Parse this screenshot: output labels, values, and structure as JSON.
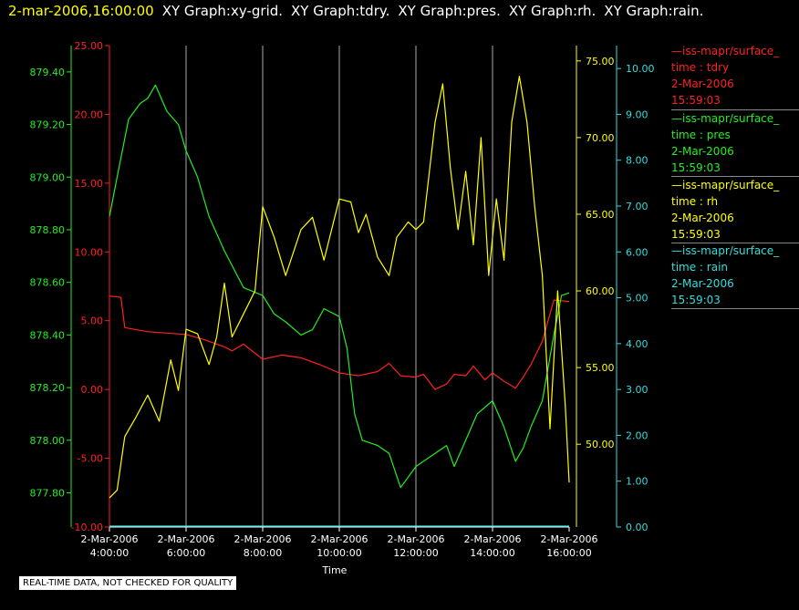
{
  "header": {
    "time": "2-mar-2006,16:00:00",
    "items": [
      "XY Graph:xy-grid.",
      "XY Graph:tdry.",
      "XY Graph:pres.",
      "XY Graph:rh.",
      "XY Graph:rain."
    ]
  },
  "footer_note": "REAL-TIME DATA, NOT CHECKED FOR QUALITY",
  "colors": {
    "tdry": "#ff2020",
    "pres": "#22ee22",
    "rh": "#ffff00",
    "rain": "#33dddd",
    "grid": "#aaaaaa"
  },
  "legend": [
    {
      "line1": "—iss-mapr/surface_",
      "line2": "time : tdry",
      "line3": "2-Mar-2006",
      "line4": "15:59:03",
      "color": "#ff2020"
    },
    {
      "line1": "—iss-mapr/surface_",
      "line2": "time : pres",
      "line3": "2-Mar-2006",
      "line4": "15:59:03",
      "color": "#22ee22"
    },
    {
      "line1": "—iss-mapr/surface_",
      "line2": "time : rh",
      "line3": "2-Mar-2006",
      "line4": "15:59:03",
      "color": "#ffff00"
    },
    {
      "line1": "—iss-mapr/surface_",
      "line2": "time : rain",
      "line3": "2-Mar-2006",
      "line4": "15:59:03",
      "color": "#33dddd"
    }
  ],
  "chart_data": {
    "type": "line",
    "xlabel": "Time",
    "x_ticks": [
      {
        "date": "2-Mar-2006",
        "time": "4:00:00",
        "hour": 4
      },
      {
        "date": "2-Mar-2006",
        "time": "6:00:00",
        "hour": 6
      },
      {
        "date": "2-Mar-2006",
        "time": "8:00:00",
        "hour": 8
      },
      {
        "date": "2-Mar-2006",
        "time": "10:00:00",
        "hour": 10
      },
      {
        "date": "2-Mar-2006",
        "time": "12:00:00",
        "hour": 12
      },
      {
        "date": "2-Mar-2006",
        "time": "14:00:00",
        "hour": 14
      },
      {
        "date": "2-Mar-2006",
        "time": "16:00:00",
        "hour": 16
      }
    ],
    "xlim": [
      4,
      16
    ],
    "axes": {
      "tdry": {
        "ylim": [
          -10,
          25
        ],
        "ticks": [
          "-10.00",
          "-5.00",
          "0.00",
          "5.00",
          "10.00",
          "15.00",
          "20.00",
          "25.00"
        ]
      },
      "pres": {
        "ylim": [
          877.67,
          879.5
        ],
        "ticks": [
          "877.80",
          "878.00",
          "878.20",
          "878.40",
          "878.60",
          "878.80",
          "879.00",
          "879.20",
          "879.40"
        ]
      },
      "rh": {
        "ylim": [
          44.6,
          76.0
        ],
        "ticks": [
          "50.00",
          "55.00",
          "60.00",
          "65.00",
          "70.00",
          "75.00"
        ]
      },
      "rain": {
        "ylim": [
          0,
          10.5
        ],
        "ticks": [
          "0.00",
          "1.00",
          "2.00",
          "3.00",
          "4.00",
          "5.00",
          "6.00",
          "7.00",
          "8.00",
          "9.00",
          "10.00"
        ]
      }
    },
    "series": [
      {
        "name": "tdry",
        "points": [
          [
            4.0,
            6.8
          ],
          [
            4.3,
            6.7
          ],
          [
            4.4,
            4.5
          ],
          [
            5.0,
            4.2
          ],
          [
            5.5,
            4.1
          ],
          [
            6.0,
            4.0
          ],
          [
            6.5,
            3.6
          ],
          [
            7.0,
            3.1
          ],
          [
            7.2,
            2.8
          ],
          [
            7.5,
            3.3
          ],
          [
            8.0,
            2.2
          ],
          [
            8.5,
            2.5
          ],
          [
            9.0,
            2.3
          ],
          [
            9.5,
            1.8
          ],
          [
            10.0,
            1.2
          ],
          [
            10.5,
            1.0
          ],
          [
            11.0,
            1.3
          ],
          [
            11.3,
            1.9
          ],
          [
            11.6,
            1.0
          ],
          [
            12.0,
            0.9
          ],
          [
            12.2,
            1.1
          ],
          [
            12.5,
            0.0
          ],
          [
            12.8,
            0.4
          ],
          [
            13.0,
            1.1
          ],
          [
            13.3,
            1.0
          ],
          [
            13.5,
            1.7
          ],
          [
            13.8,
            0.7
          ],
          [
            14.0,
            1.2
          ],
          [
            14.3,
            0.6
          ],
          [
            14.6,
            0.1
          ],
          [
            14.8,
            0.9
          ],
          [
            15.0,
            1.8
          ],
          [
            15.3,
            3.5
          ],
          [
            15.6,
            6.5
          ],
          [
            16.0,
            6.4
          ]
        ]
      },
      {
        "name": "pres",
        "points": [
          [
            4.0,
            878.85
          ],
          [
            4.2,
            879.0
          ],
          [
            4.5,
            879.22
          ],
          [
            4.8,
            879.28
          ],
          [
            5.0,
            879.3
          ],
          [
            5.2,
            879.35
          ],
          [
            5.5,
            879.25
          ],
          [
            5.8,
            879.2
          ],
          [
            6.0,
            879.1
          ],
          [
            6.3,
            879.0
          ],
          [
            6.6,
            878.85
          ],
          [
            7.0,
            878.72
          ],
          [
            7.5,
            878.58
          ],
          [
            8.0,
            878.55
          ],
          [
            8.3,
            878.48
          ],
          [
            8.6,
            878.45
          ],
          [
            9.0,
            878.4
          ],
          [
            9.3,
            878.42
          ],
          [
            9.6,
            878.5
          ],
          [
            10.0,
            878.47
          ],
          [
            10.2,
            878.35
          ],
          [
            10.4,
            878.1
          ],
          [
            10.6,
            878.0
          ],
          [
            11.0,
            877.98
          ],
          [
            11.3,
            877.95
          ],
          [
            11.6,
            877.82
          ],
          [
            12.0,
            877.9
          ],
          [
            12.5,
            877.95
          ],
          [
            12.8,
            877.98
          ],
          [
            13.0,
            877.9
          ],
          [
            13.3,
            878.0
          ],
          [
            13.6,
            878.1
          ],
          [
            14.0,
            878.15
          ],
          [
            14.3,
            878.05
          ],
          [
            14.6,
            877.92
          ],
          [
            14.8,
            877.97
          ],
          [
            15.0,
            878.05
          ],
          [
            15.3,
            878.15
          ],
          [
            15.6,
            878.4
          ],
          [
            15.8,
            878.55
          ],
          [
            16.0,
            878.56
          ]
        ]
      },
      {
        "name": "rh",
        "points": [
          [
            4.0,
            46.5
          ],
          [
            4.2,
            47.0
          ],
          [
            4.4,
            50.5
          ],
          [
            4.7,
            51.8
          ],
          [
            5.0,
            53.2
          ],
          [
            5.3,
            51.5
          ],
          [
            5.6,
            55.5
          ],
          [
            5.8,
            53.5
          ],
          [
            6.0,
            57.5
          ],
          [
            6.3,
            57.2
          ],
          [
            6.6,
            55.2
          ],
          [
            6.8,
            57.0
          ],
          [
            7.0,
            60.5
          ],
          [
            7.2,
            57.0
          ],
          [
            7.5,
            58.5
          ],
          [
            7.8,
            60.0
          ],
          [
            8.0,
            65.5
          ],
          [
            8.3,
            63.5
          ],
          [
            8.6,
            61.0
          ],
          [
            9.0,
            64.0
          ],
          [
            9.3,
            64.8
          ],
          [
            9.6,
            62.0
          ],
          [
            10.0,
            66.0
          ],
          [
            10.3,
            65.8
          ],
          [
            10.5,
            63.8
          ],
          [
            10.7,
            65.0
          ],
          [
            11.0,
            62.2
          ],
          [
            11.3,
            61.0
          ],
          [
            11.5,
            63.5
          ],
          [
            11.8,
            64.5
          ],
          [
            12.0,
            64.0
          ],
          [
            12.2,
            64.5
          ],
          [
            12.5,
            71.0
          ],
          [
            12.7,
            73.5
          ],
          [
            12.9,
            68.0
          ],
          [
            13.1,
            64.0
          ],
          [
            13.3,
            67.8
          ],
          [
            13.5,
            63.0
          ],
          [
            13.7,
            70.0
          ],
          [
            13.9,
            61.0
          ],
          [
            14.1,
            66.0
          ],
          [
            14.3,
            62.0
          ],
          [
            14.5,
            71.0
          ],
          [
            14.7,
            74.0
          ],
          [
            14.9,
            71.0
          ],
          [
            15.1,
            65.5
          ],
          [
            15.3,
            61.0
          ],
          [
            15.5,
            51.0
          ],
          [
            15.7,
            60.0
          ],
          [
            15.9,
            52.5
          ],
          [
            16.0,
            47.5
          ]
        ]
      },
      {
        "name": "rain",
        "points": [
          [
            4.0,
            0.02
          ],
          [
            16.0,
            0.02
          ]
        ]
      }
    ]
  }
}
